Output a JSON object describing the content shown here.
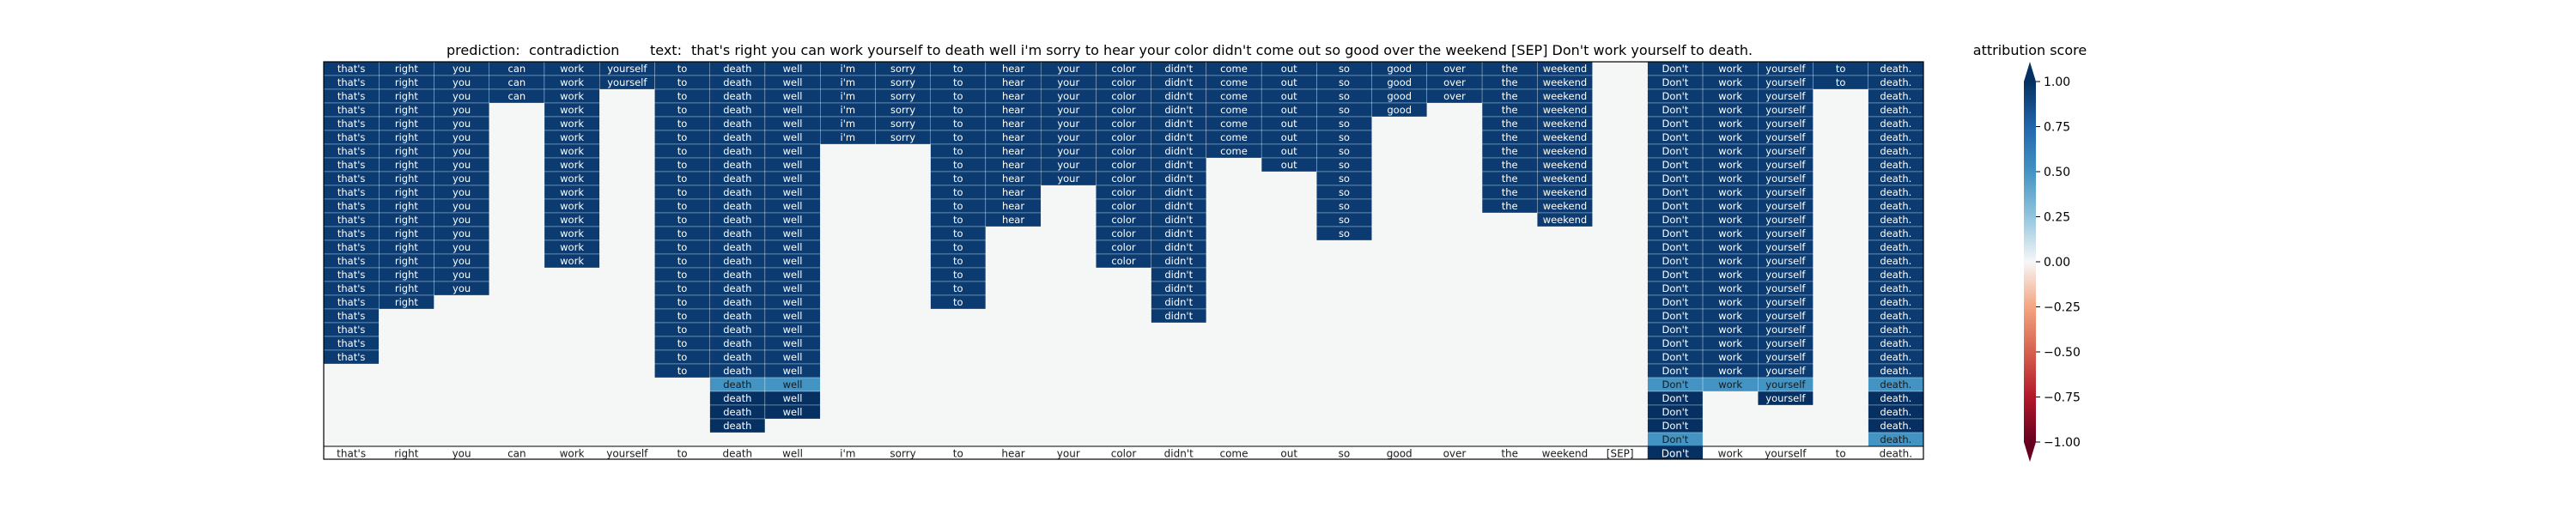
{
  "chart_data": {
    "type": "heatmap",
    "title": {
      "prediction_label": "prediction:",
      "prediction_value": "contradiction",
      "text_label": "text:",
      "text_value": "that's right you can work yourself to death well i'm sorry to hear your color didn't come out so good over the weekend [SEP] Don't work yourself to death."
    },
    "tokens": [
      "that's",
      "right",
      "you",
      "can",
      "work",
      "yourself",
      "to",
      "death",
      "well",
      "i'm",
      "sorry",
      "to",
      "hear",
      "your",
      "color",
      "didn't",
      "come",
      "out",
      "so",
      "good",
      "over",
      "the",
      "weekend",
      "[SEP]",
      "Don't",
      "work",
      "yourself",
      "to",
      "death."
    ],
    "column_fill_rows": [
      22,
      18,
      17,
      3,
      15,
      2,
      23,
      27,
      26,
      6,
      6,
      18,
      12,
      9,
      15,
      19,
      7,
      8,
      13,
      4,
      3,
      11,
      12,
      0,
      28,
      24,
      25,
      2,
      28
    ],
    "highlight_cells": [
      {
        "token_index": 7,
        "row": 23,
        "value": 0.5
      },
      {
        "token_index": 8,
        "row": 23,
        "value": 0.5
      },
      {
        "token_index": 24,
        "row": 23,
        "value": 0.5
      },
      {
        "token_index": 25,
        "row": 23,
        "value": 0.5
      },
      {
        "token_index": 26,
        "row": 23,
        "value": 0.5
      },
      {
        "token_index": 28,
        "row": 23,
        "value": 0.5
      },
      {
        "token_index": 24,
        "row": 27,
        "value": 0.5
      },
      {
        "token_index": 28,
        "row": 27,
        "value": 0.5
      }
    ],
    "cell_value": 0.95,
    "deep_cells": [
      {
        "token_index": 7,
        "row": 24,
        "value": 1.0
      },
      {
        "token_index": 7,
        "row": 25,
        "value": 1.0
      },
      {
        "token_index": 8,
        "row": 24,
        "value": 1.0
      },
      {
        "token_index": 8,
        "row": 25,
        "value": 1.0
      },
      {
        "token_index": 7,
        "row": 26,
        "value": 1.0
      },
      {
        "token_index": 24,
        "row": 24,
        "value": 1.0
      },
      {
        "token_index": 24,
        "row": 25,
        "value": 1.0
      },
      {
        "token_index": 24,
        "row": 26,
        "value": 1.0
      },
      {
        "token_index": 26,
        "row": 24,
        "value": 1.0
      },
      {
        "token_index": 28,
        "row": 24,
        "value": 1.0
      },
      {
        "token_index": 28,
        "row": 25,
        "value": 1.0
      },
      {
        "token_index": 28,
        "row": 26,
        "value": 1.0
      }
    ],
    "bottom_row_highlight": {
      "token_index": 24,
      "value": 1.0
    },
    "colorbar": {
      "label": "attribution score",
      "ticks": [
        "1.00",
        "0.75",
        "0.50",
        "0.25",
        "0.00",
        "−0.25",
        "−0.50",
        "−0.75",
        "−1.00"
      ],
      "range": [
        -1.0,
        1.0
      ],
      "colormap": "RdBu"
    },
    "colors": {
      "strong_positive": "#1a5190",
      "deep_positive": "#0b3a6e",
      "light_positive": "#9cc9e1",
      "neutral": "#f5f7f7",
      "strong_negative": "#7f0b23"
    }
  }
}
